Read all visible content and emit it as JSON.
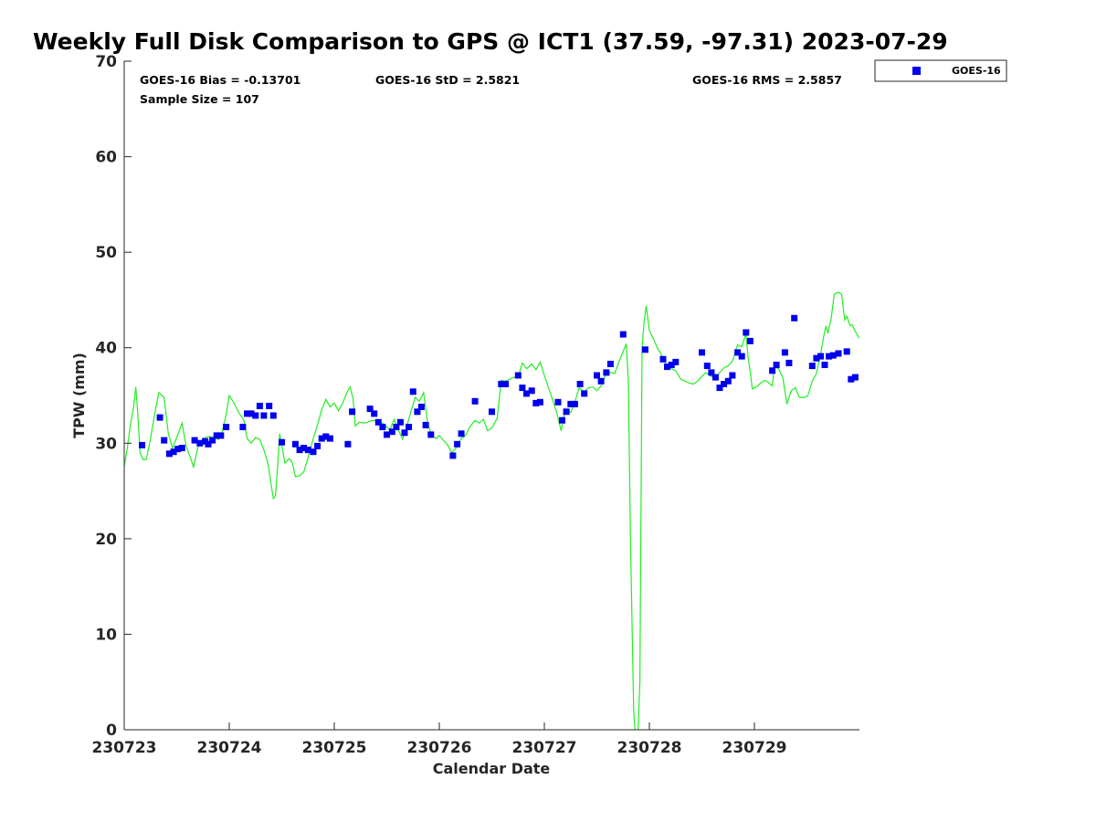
{
  "chart_data": {
    "type": "scatter",
    "title": "Weekly Full Disk Comparison to GPS @ ICT1 (37.59, -97.31) 2023-07-29",
    "xlabel": "Calendar Date",
    "ylabel": "TPW (mm)",
    "xlim": [
      0,
      7
    ],
    "ylim": [
      0,
      70
    ],
    "x_tick_values": [
      0,
      1,
      2,
      3,
      4,
      5,
      6
    ],
    "x_tick_labels": [
      "230723",
      "230724",
      "230725",
      "230726",
      "230727",
      "230728",
      "230729"
    ],
    "y_tick_values": [
      0,
      10,
      20,
      30,
      40,
      50,
      60,
      70
    ],
    "y_tick_labels": [
      "0",
      "10",
      "20",
      "30",
      "40",
      "50",
      "60",
      "70"
    ],
    "stats": {
      "bias": "GOES-16 Bias = -0.13701",
      "std": "GOES-16 StD = 2.5821",
      "rms": "GOES-16 RMS = 2.5857",
      "sample_size": "Sample Size = 107"
    },
    "legend": {
      "label": "GOES-16",
      "placement": "outside-top-right",
      "color": "#0000ee"
    },
    "series": [
      {
        "name": "GOES-16",
        "kind": "markers",
        "color": "#0000ee",
        "points": [
          [
            0.17,
            29.8
          ],
          [
            0.34,
            32.7
          ],
          [
            0.38,
            30.3
          ],
          [
            0.43,
            28.9
          ],
          [
            0.47,
            29.1
          ],
          [
            0.51,
            29.4
          ],
          [
            0.55,
            29.5
          ],
          [
            0.67,
            30.3
          ],
          [
            0.72,
            30.0
          ],
          [
            0.77,
            30.2
          ],
          [
            0.8,
            29.9
          ],
          [
            0.84,
            30.3
          ],
          [
            0.88,
            30.8
          ],
          [
            0.92,
            30.8
          ],
          [
            0.97,
            31.7
          ],
          [
            1.13,
            31.7
          ],
          [
            1.17,
            33.1
          ],
          [
            1.21,
            33.1
          ],
          [
            1.25,
            32.9
          ],
          [
            1.29,
            33.9
          ],
          [
            1.33,
            32.9
          ],
          [
            1.38,
            33.9
          ],
          [
            1.42,
            32.9
          ],
          [
            1.5,
            30.1
          ],
          [
            1.63,
            29.9
          ],
          [
            1.67,
            29.3
          ],
          [
            1.71,
            29.5
          ],
          [
            1.75,
            29.3
          ],
          [
            1.8,
            29.1
          ],
          [
            1.84,
            29.7
          ],
          [
            1.88,
            30.5
          ],
          [
            1.92,
            30.7
          ],
          [
            1.96,
            30.5
          ],
          [
            2.13,
            29.9
          ],
          [
            2.17,
            33.3
          ],
          [
            2.34,
            33.6
          ],
          [
            2.38,
            33.1
          ],
          [
            2.42,
            32.2
          ],
          [
            2.46,
            31.7
          ],
          [
            2.5,
            30.9
          ],
          [
            2.55,
            31.2
          ],
          [
            2.59,
            31.7
          ],
          [
            2.63,
            32.2
          ],
          [
            2.67,
            31.1
          ],
          [
            2.71,
            31.7
          ],
          [
            2.75,
            35.4
          ],
          [
            2.79,
            33.3
          ],
          [
            2.83,
            33.8
          ],
          [
            2.87,
            31.9
          ],
          [
            2.92,
            30.9
          ],
          [
            3.13,
            28.7
          ],
          [
            3.17,
            29.9
          ],
          [
            3.21,
            31.0
          ],
          [
            3.34,
            34.4
          ],
          [
            3.5,
            33.3
          ],
          [
            3.59,
            36.2
          ],
          [
            3.63,
            36.2
          ],
          [
            3.75,
            37.1
          ],
          [
            3.79,
            35.8
          ],
          [
            3.83,
            35.2
          ],
          [
            3.88,
            35.5
          ],
          [
            3.92,
            34.2
          ],
          [
            3.96,
            34.3
          ],
          [
            4.13,
            34.3
          ],
          [
            4.17,
            32.4
          ],
          [
            4.21,
            33.3
          ],
          [
            4.25,
            34.1
          ],
          [
            4.29,
            34.1
          ],
          [
            4.34,
            36.2
          ],
          [
            4.38,
            35.2
          ],
          [
            4.5,
            37.1
          ],
          [
            4.54,
            36.5
          ],
          [
            4.59,
            37.4
          ],
          [
            4.63,
            38.3
          ],
          [
            4.75,
            41.4
          ],
          [
            4.96,
            39.8
          ],
          [
            5.13,
            38.8
          ],
          [
            5.17,
            38.0
          ],
          [
            5.21,
            38.2
          ],
          [
            5.25,
            38.5
          ],
          [
            5.5,
            39.5
          ],
          [
            5.55,
            38.1
          ],
          [
            5.59,
            37.4
          ],
          [
            5.63,
            36.9
          ],
          [
            5.67,
            35.8
          ],
          [
            5.71,
            36.2
          ],
          [
            5.75,
            36.5
          ],
          [
            5.79,
            37.1
          ],
          [
            5.84,
            39.5
          ],
          [
            5.88,
            39.1
          ],
          [
            5.92,
            41.6
          ],
          [
            5.96,
            40.7
          ],
          [
            6.17,
            37.6
          ],
          [
            6.21,
            38.2
          ],
          [
            6.29,
            39.5
          ],
          [
            6.33,
            38.4
          ],
          [
            6.38,
            43.1
          ],
          [
            6.55,
            38.1
          ],
          [
            6.59,
            38.9
          ],
          [
            6.63,
            39.1
          ],
          [
            6.67,
            38.2
          ],
          [
            6.71,
            39.1
          ],
          [
            6.75,
            39.2
          ],
          [
            6.8,
            39.4
          ],
          [
            6.88,
            39.6
          ],
          [
            6.92,
            36.7
          ],
          [
            6.96,
            36.9
          ]
        ]
      },
      {
        "name": "GPS",
        "kind": "line",
        "color": "#22ee22",
        "points": [
          [
            0.0,
            27.6
          ],
          [
            0.03,
            29.5
          ],
          [
            0.06,
            32.0
          ],
          [
            0.09,
            33.8
          ],
          [
            0.11,
            35.9
          ],
          [
            0.13,
            33.0
          ],
          [
            0.15,
            29.0
          ],
          [
            0.18,
            28.3
          ],
          [
            0.21,
            28.3
          ],
          [
            0.25,
            30.5
          ],
          [
            0.29,
            33.0
          ],
          [
            0.33,
            35.3
          ],
          [
            0.38,
            34.8
          ],
          [
            0.42,
            31.0
          ],
          [
            0.46,
            29.5
          ],
          [
            0.5,
            30.6
          ],
          [
            0.55,
            32.1
          ],
          [
            0.59,
            29.7
          ],
          [
            0.63,
            28.5
          ],
          [
            0.66,
            27.5
          ],
          [
            0.7,
            29.5
          ],
          [
            0.75,
            30.5
          ],
          [
            0.8,
            30.7
          ],
          [
            0.85,
            30.6
          ],
          [
            0.9,
            30.4
          ],
          [
            0.93,
            31.0
          ],
          [
            0.97,
            33.0
          ],
          [
            1.0,
            35.0
          ],
          [
            1.04,
            34.3
          ],
          [
            1.09,
            33.2
          ],
          [
            1.14,
            32.4
          ],
          [
            1.17,
            30.5
          ],
          [
            1.21,
            30.0
          ],
          [
            1.25,
            30.6
          ],
          [
            1.29,
            30.4
          ],
          [
            1.33,
            29.3
          ],
          [
            1.37,
            27.8
          ],
          [
            1.4,
            25.6
          ],
          [
            1.42,
            24.2
          ],
          [
            1.44,
            24.5
          ],
          [
            1.46,
            27.5
          ],
          [
            1.48,
            31.0
          ],
          [
            1.5,
            29.8
          ],
          [
            1.53,
            27.9
          ],
          [
            1.57,
            28.4
          ],
          [
            1.6,
            28.0
          ],
          [
            1.63,
            26.5
          ],
          [
            1.67,
            26.6
          ],
          [
            1.71,
            27.0
          ],
          [
            1.75,
            28.5
          ],
          [
            1.8,
            30.5
          ],
          [
            1.84,
            31.9
          ],
          [
            1.88,
            33.5
          ],
          [
            1.92,
            34.6
          ],
          [
            1.96,
            33.8
          ],
          [
            2.0,
            34.2
          ],
          [
            2.04,
            33.4
          ],
          [
            2.08,
            34.2
          ],
          [
            2.12,
            35.3
          ],
          [
            2.15,
            35.9
          ],
          [
            2.18,
            34.6
          ],
          [
            2.2,
            31.8
          ],
          [
            2.24,
            32.2
          ],
          [
            2.29,
            32.1
          ],
          [
            2.34,
            32.3
          ],
          [
            2.38,
            32.4
          ],
          [
            2.42,
            32.2
          ],
          [
            2.46,
            32.1
          ],
          [
            2.5,
            31.7
          ],
          [
            2.53,
            31.4
          ],
          [
            2.57,
            32.5
          ],
          [
            2.61,
            31.4
          ],
          [
            2.65,
            30.4
          ],
          [
            2.69,
            31.8
          ],
          [
            2.73,
            33.3
          ],
          [
            2.77,
            34.8
          ],
          [
            2.81,
            34.4
          ],
          [
            2.85,
            35.3
          ],
          [
            2.89,
            32.0
          ],
          [
            2.93,
            30.8
          ],
          [
            2.97,
            30.5
          ],
          [
            3.0,
            30.8
          ],
          [
            3.04,
            30.3
          ],
          [
            3.08,
            29.8
          ],
          [
            3.12,
            29.0
          ],
          [
            3.16,
            29.5
          ],
          [
            3.21,
            30.5
          ],
          [
            3.25,
            30.8
          ],
          [
            3.29,
            31.7
          ],
          [
            3.34,
            32.4
          ],
          [
            3.38,
            32.1
          ],
          [
            3.42,
            32.5
          ],
          [
            3.46,
            31.3
          ],
          [
            3.5,
            31.6
          ],
          [
            3.55,
            32.6
          ],
          [
            3.59,
            36.6
          ],
          [
            3.63,
            36.5
          ],
          [
            3.67,
            36.7
          ],
          [
            3.71,
            36.9
          ],
          [
            3.75,
            36.9
          ],
          [
            3.79,
            38.4
          ],
          [
            3.83,
            37.8
          ],
          [
            3.88,
            38.3
          ],
          [
            3.92,
            37.7
          ],
          [
            3.96,
            38.5
          ],
          [
            4.0,
            37.1
          ],
          [
            4.04,
            35.8
          ],
          [
            4.08,
            34.5
          ],
          [
            4.12,
            33.1
          ],
          [
            4.16,
            31.3
          ],
          [
            4.2,
            33.6
          ],
          [
            4.25,
            33.2
          ],
          [
            4.29,
            34.3
          ],
          [
            4.33,
            35.8
          ],
          [
            4.38,
            35.4
          ],
          [
            4.42,
            35.8
          ],
          [
            4.46,
            35.9
          ],
          [
            4.5,
            35.5
          ],
          [
            4.54,
            36.0
          ],
          [
            4.59,
            37.3
          ],
          [
            4.63,
            37.4
          ],
          [
            4.67,
            37.3
          ],
          [
            4.71,
            38.5
          ],
          [
            4.75,
            39.6
          ],
          [
            4.78,
            40.4
          ],
          [
            4.8,
            36.5
          ],
          [
            4.82,
            20.0
          ],
          [
            4.85,
            2.0
          ],
          [
            4.87,
            -1.0
          ],
          [
            4.89,
            -1.0
          ],
          [
            4.91,
            5.0
          ],
          [
            4.93,
            40.0
          ],
          [
            4.95,
            42.8
          ],
          [
            4.97,
            44.4
          ],
          [
            5.0,
            41.8
          ],
          [
            5.04,
            40.9
          ],
          [
            5.08,
            39.9
          ],
          [
            5.13,
            39.0
          ],
          [
            5.17,
            38.1
          ],
          [
            5.21,
            37.8
          ],
          [
            5.25,
            37.6
          ],
          [
            5.3,
            36.7
          ],
          [
            5.34,
            36.5
          ],
          [
            5.38,
            36.3
          ],
          [
            5.42,
            36.2
          ],
          [
            5.46,
            36.5
          ],
          [
            5.5,
            37.0
          ],
          [
            5.54,
            37.4
          ],
          [
            5.59,
            37.0
          ],
          [
            5.63,
            36.8
          ],
          [
            5.67,
            37.4
          ],
          [
            5.71,
            37.9
          ],
          [
            5.75,
            38.1
          ],
          [
            5.79,
            38.6
          ],
          [
            5.84,
            40.3
          ],
          [
            5.88,
            40.1
          ],
          [
            5.92,
            41.5
          ],
          [
            5.94,
            39.0
          ],
          [
            5.96,
            37.5
          ],
          [
            5.98,
            35.7
          ],
          [
            6.02,
            35.9
          ],
          [
            6.06,
            36.3
          ],
          [
            6.1,
            36.6
          ],
          [
            6.13,
            36.4
          ],
          [
            6.17,
            36.0
          ],
          [
            6.19,
            38.0
          ],
          [
            6.23,
            37.8
          ],
          [
            6.27,
            36.9
          ],
          [
            6.31,
            34.1
          ],
          [
            6.35,
            35.5
          ],
          [
            6.39,
            35.8
          ],
          [
            6.43,
            34.8
          ],
          [
            6.48,
            34.8
          ],
          [
            6.51,
            35.0
          ],
          [
            6.55,
            36.5
          ],
          [
            6.59,
            37.3
          ],
          [
            6.63,
            39.3
          ],
          [
            6.66,
            41.2
          ],
          [
            6.68,
            42.2
          ],
          [
            6.7,
            41.6
          ],
          [
            6.73,
            43.0
          ],
          [
            6.76,
            45.6
          ],
          [
            6.8,
            45.8
          ],
          [
            6.83,
            45.6
          ],
          [
            6.86,
            42.9
          ],
          [
            6.88,
            43.3
          ],
          [
            6.91,
            42.3
          ],
          [
            6.93,
            42.4
          ],
          [
            6.96,
            41.7
          ],
          [
            7.0,
            41.0
          ]
        ]
      }
    ]
  }
}
